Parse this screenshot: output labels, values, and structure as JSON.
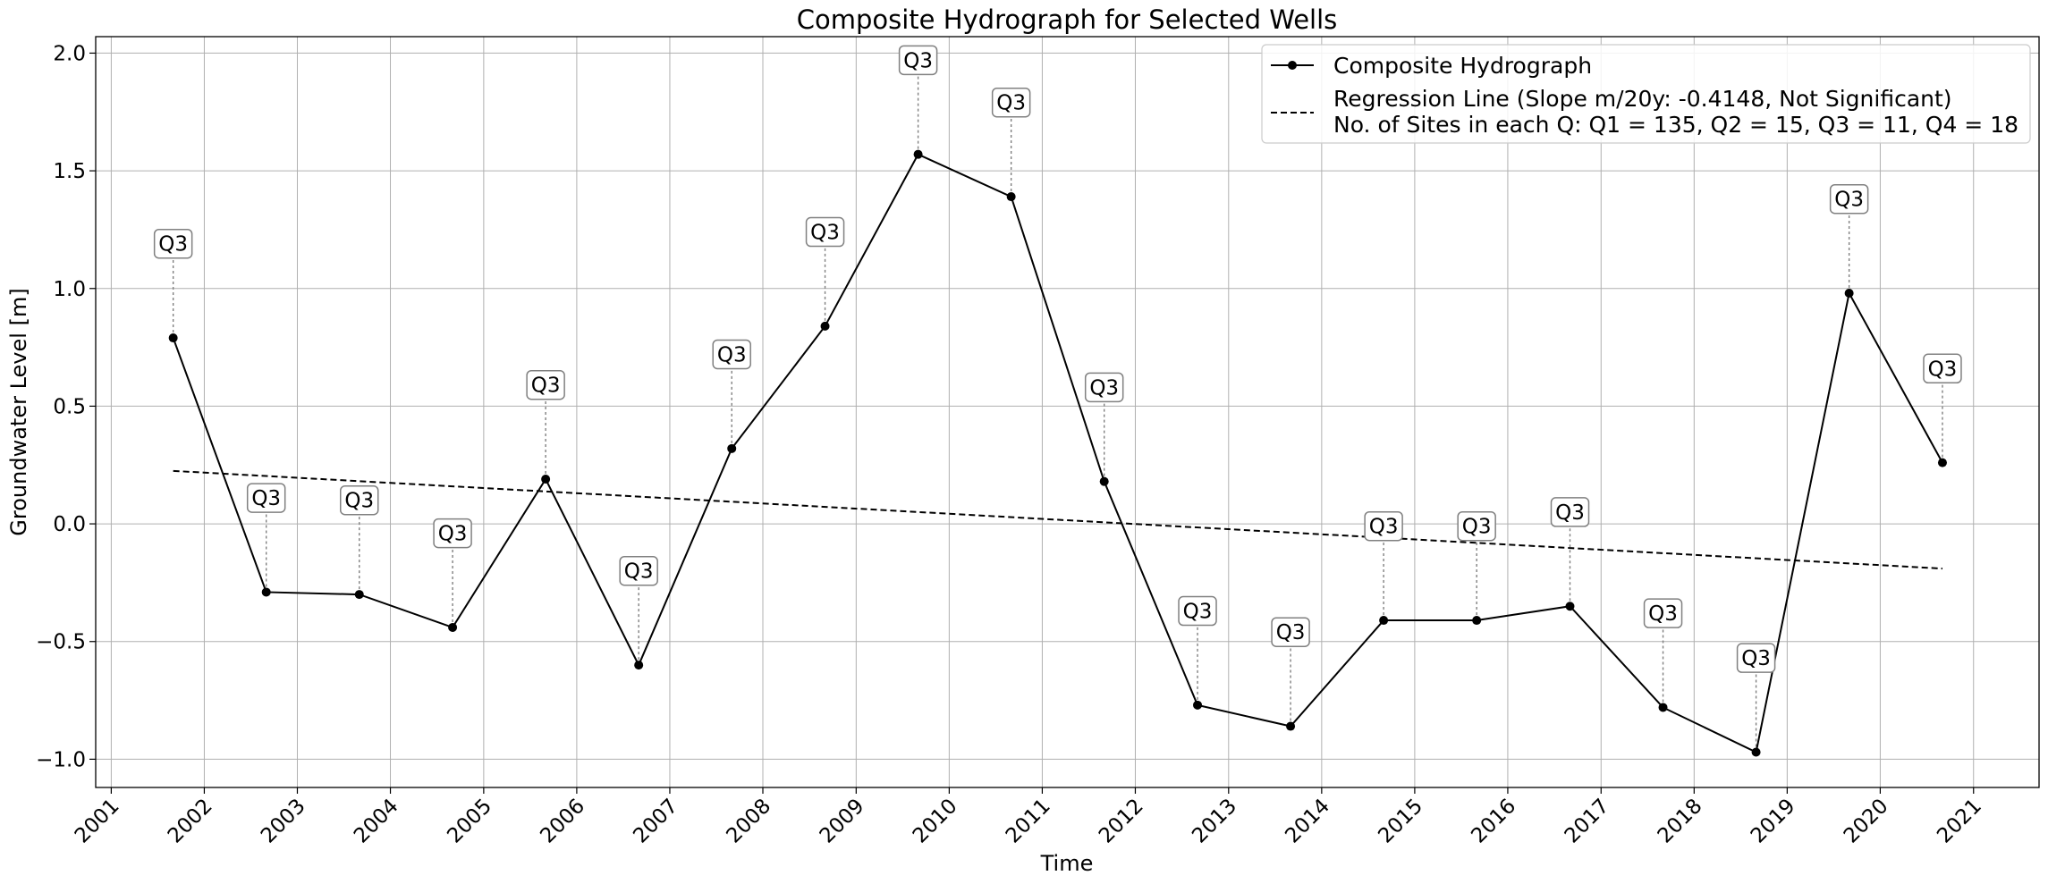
{
  "chart_data": {
    "type": "line",
    "title": "Composite Hydrograph for Selected Wells",
    "xlabel": "Time",
    "ylabel": "Groundwater Level [m]",
    "xlim": [
      "2000-11-01",
      "2021-09-15"
    ],
    "ylim": [
      -1.12,
      2.07
    ],
    "x_ticks": [
      "2001",
      "2002",
      "2003",
      "2004",
      "2005",
      "2006",
      "2007",
      "2008",
      "2009",
      "2010",
      "2011",
      "2012",
      "2013",
      "2014",
      "2015",
      "2016",
      "2017",
      "2018",
      "2019",
      "2020",
      "2021"
    ],
    "y_ticks": [
      -1.0,
      -0.5,
      0.0,
      0.5,
      1.0,
      1.5,
      2.0
    ],
    "y_tick_labels": [
      "−1.0",
      "−0.5",
      "0.0",
      "0.5",
      "1.0",
      "1.5",
      "2.0"
    ],
    "grid": true,
    "legend_position": "top-right",
    "series": [
      {
        "name": "Composite Hydrograph",
        "style": "solid",
        "marker": "circle",
        "color": "#000000",
        "x": [
          "2001-09-01",
          "2002-09-01",
          "2003-09-01",
          "2004-09-01",
          "2005-09-01",
          "2006-09-01",
          "2007-09-01",
          "2008-09-01",
          "2009-09-01",
          "2010-09-01",
          "2011-09-01",
          "2012-09-01",
          "2013-09-01",
          "2014-09-01",
          "2015-09-01",
          "2016-09-01",
          "2017-09-01",
          "2018-09-01",
          "2019-09-01",
          "2020-09-01"
        ],
        "values": [
          0.79,
          -0.29,
          -0.3,
          -0.44,
          0.19,
          -0.6,
          0.32,
          0.84,
          1.57,
          1.39,
          0.18,
          -0.77,
          -0.86,
          -0.41,
          -0.41,
          -0.35,
          -0.78,
          -0.97,
          0.98,
          0.26
        ],
        "annotations": [
          "Q3",
          "Q3",
          "Q3",
          "Q3",
          "Q3",
          "Q3",
          "Q3",
          "Q3",
          "Q3",
          "Q3",
          "Q3",
          "Q3",
          "Q3",
          "Q3",
          "Q3",
          "Q3",
          "Q3",
          "Q3",
          "Q3",
          "Q3"
        ],
        "annotation_offsets": [
          0.4,
          0.4,
          0.4,
          0.4,
          0.4,
          0.4,
          0.4,
          0.4,
          0.4,
          0.4,
          0.4,
          0.4,
          0.4,
          0.4,
          0.4,
          0.4,
          0.4,
          0.4,
          0.4,
          0.4
        ]
      },
      {
        "name": "Regression Line (Slope m/20y: -0.4148, Not Significant)",
        "style": "dashed",
        "color": "#000000",
        "x": [
          "2001-09-01",
          "2020-09-01"
        ],
        "values": [
          0.225,
          -0.19
        ]
      }
    ],
    "legend": [
      {
        "label": "Composite Hydrograph",
        "style": "solid-marker"
      },
      {
        "label": "Regression Line (Slope m/20y: -0.4148, Not Significant)",
        "style": "dashed"
      },
      {
        "label": "No. of Sites in each Q: Q1 = 135, Q2 = 15, Q3 = 11, Q4 = 18",
        "style": "none"
      }
    ]
  }
}
